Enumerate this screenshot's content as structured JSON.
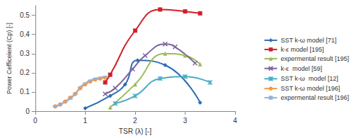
{
  "chart_data": {
    "type": "line",
    "x_label": "TSR (λ) [-]",
    "y_label": "Power Cefficeient (Cp) [-]",
    "xlim": [
      0,
      4
    ],
    "xticks": [
      0,
      1,
      2,
      3,
      4
    ],
    "ylim": [
      0,
      0.55
    ],
    "yticks": [
      0,
      0.1,
      0.2,
      0.3,
      0.4,
      0.5
    ],
    "grid": false,
    "legend": "right",
    "series": [
      {
        "name": "SST k-ω model [71]",
        "color": "#2e6eb5",
        "marker": "diamond",
        "line_style": "smooth",
        "x": [
          1.0,
          1.5,
          1.8,
          2.05,
          2.6,
          3.3
        ],
        "values": [
          0.015,
          0.08,
          0.14,
          0.265,
          0.24,
          0.045
        ]
      },
      {
        "name": "k-ε model [195]",
        "color": "#d0202a",
        "marker": "square",
        "line_style": "smooth",
        "x": [
          1.4,
          1.5,
          2.0,
          2.5,
          3.0,
          3.3
        ],
        "values": [
          0.15,
          0.19,
          0.42,
          0.53,
          0.52,
          0.51
        ]
      },
      {
        "name": "expermental result [195]",
        "color": "#9bbb59",
        "marker": "triangle",
        "line_style": "smooth",
        "x": [
          1.5,
          2.0,
          2.6,
          3.0,
          3.3
        ],
        "values": [
          0.02,
          0.14,
          0.3,
          0.29,
          0.245
        ]
      },
      {
        "name": "k-ε  model [59]",
        "color": "#8064a2",
        "marker": "x",
        "line_style": "smooth",
        "x": [
          1.4,
          1.6,
          1.95,
          2.2,
          2.6,
          2.8,
          3.2
        ],
        "values": [
          0.09,
          0.12,
          0.22,
          0.29,
          0.35,
          0.335,
          0.25
        ]
      },
      {
        "name": "SST k-ω  model [12]",
        "color": "#4bacc6",
        "marker": "asterisk",
        "line_style": "smooth",
        "x": [
          1.6,
          2.0,
          2.5,
          3.0,
          3.5
        ],
        "values": [
          0.04,
          0.08,
          0.17,
          0.18,
          0.15
        ]
      },
      {
        "name": "SST k-ω model [196]",
        "color": "#f79646",
        "marker": "circle",
        "line_style": "smooth",
        "x": [
          0.4,
          0.5,
          0.6,
          0.7,
          0.8,
          0.9,
          1.0,
          1.1,
          1.2,
          1.3,
          1.4
        ],
        "values": [
          0.025,
          0.035,
          0.05,
          0.07,
          0.09,
          0.12,
          0.14,
          0.155,
          0.165,
          0.17,
          0.175
        ]
      },
      {
        "name": "expermental result [196]",
        "color": "#95b3d7",
        "marker": "dash",
        "line_style": "smooth",
        "x": [
          0.4,
          0.5,
          0.6,
          0.7,
          0.8,
          0.9,
          1.0,
          1.1,
          1.2,
          1.3,
          1.4
        ],
        "values": [
          0.025,
          0.035,
          0.05,
          0.065,
          0.09,
          0.125,
          0.145,
          0.16,
          0.17,
          0.175,
          0.18
        ]
      }
    ]
  }
}
